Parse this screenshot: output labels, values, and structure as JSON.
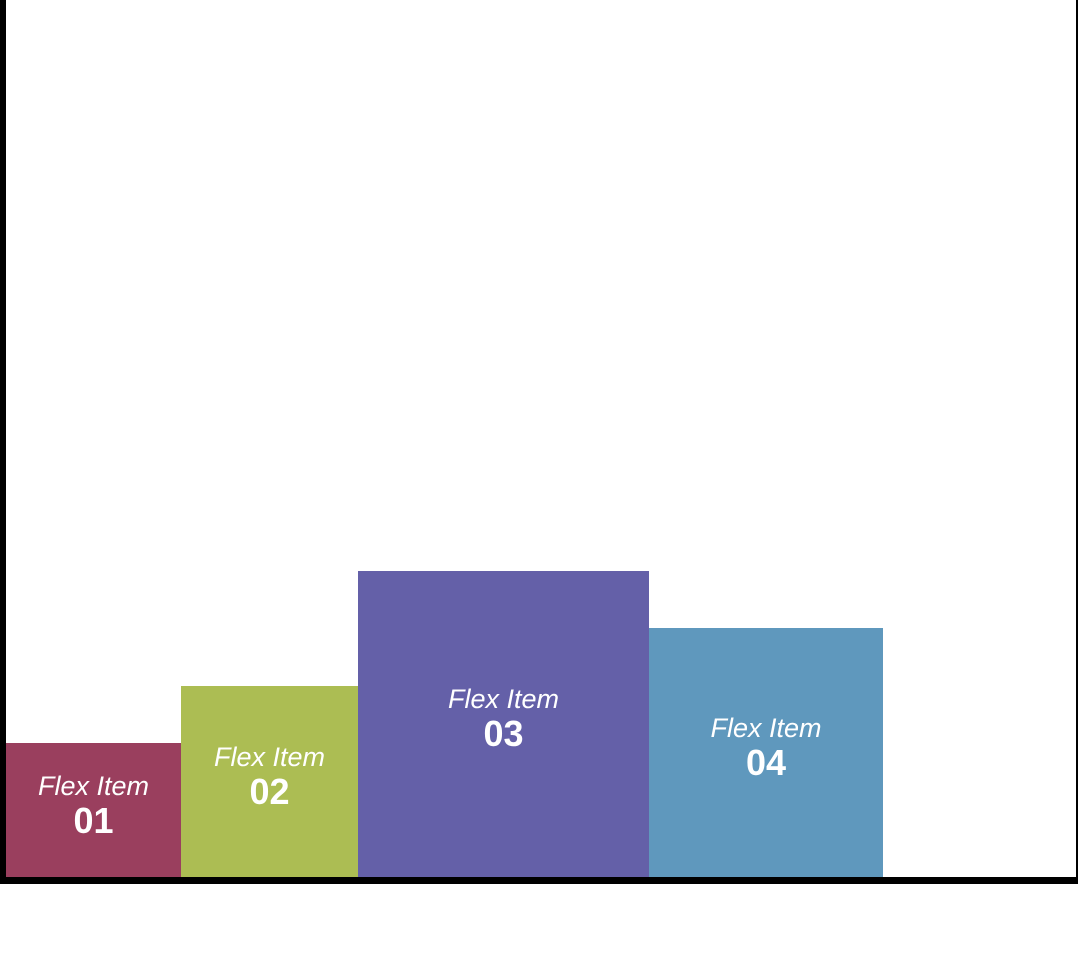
{
  "items": [
    {
      "label": "Flex Item",
      "number": "01",
      "color": "#9a3f5e"
    },
    {
      "label": "Flex Item",
      "number": "02",
      "color": "#acbd53"
    },
    {
      "label": "Flex Item",
      "number": "03",
      "color": "#6460a8"
    },
    {
      "label": "Flex Item",
      "number": "04",
      "color": "#5f98bd"
    }
  ]
}
